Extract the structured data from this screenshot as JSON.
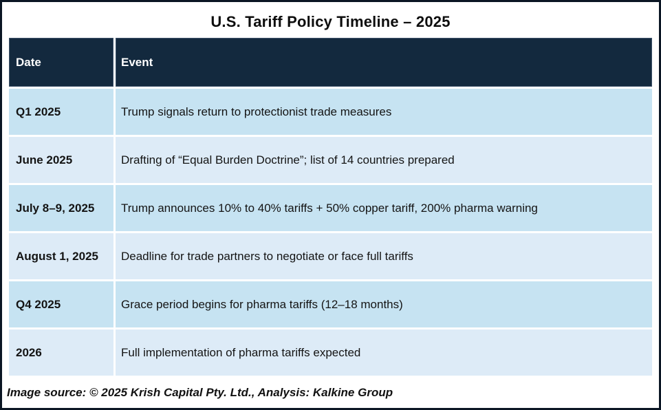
{
  "chart_data": {
    "type": "table",
    "title": "U.S. Tariff Policy Timeline – 2025",
    "columns": [
      "Date",
      "Event"
    ],
    "rows": [
      {
        "date": "Q1 2025",
        "event": "Trump signals return to protectionist trade measures"
      },
      {
        "date": "June 2025",
        "event": "Drafting of “Equal Burden Doctrine”; list of 14 countries prepared"
      },
      {
        "date": "July 8–9, 2025",
        "event": "Trump announces 10% to 40% tariffs + 50% copper tariff, 200% pharma warning"
      },
      {
        "date": "August 1, 2025",
        "event": "Deadline for trade partners to negotiate or face full tariffs"
      },
      {
        "date": "Q4 2025",
        "event": "Grace period begins for pharma tariffs (12–18 months)"
      },
      {
        "date": "2026",
        "event": "Full implementation of pharma tariffs expected"
      }
    ],
    "source_note": "Image source: © 2025 Krish Capital Pty. Ltd., Analysis: Kalkine Group",
    "layout": {
      "grid": "off",
      "header_position": "top",
      "row_striping": "alternating"
    }
  },
  "colors": {
    "header_bg": "#13293e",
    "header_text": "#ffffff",
    "row_odd_bg": "#c6e3f2",
    "row_even_bg": "#ddebf7",
    "border": "#0b1624",
    "body_text": "#141414"
  }
}
